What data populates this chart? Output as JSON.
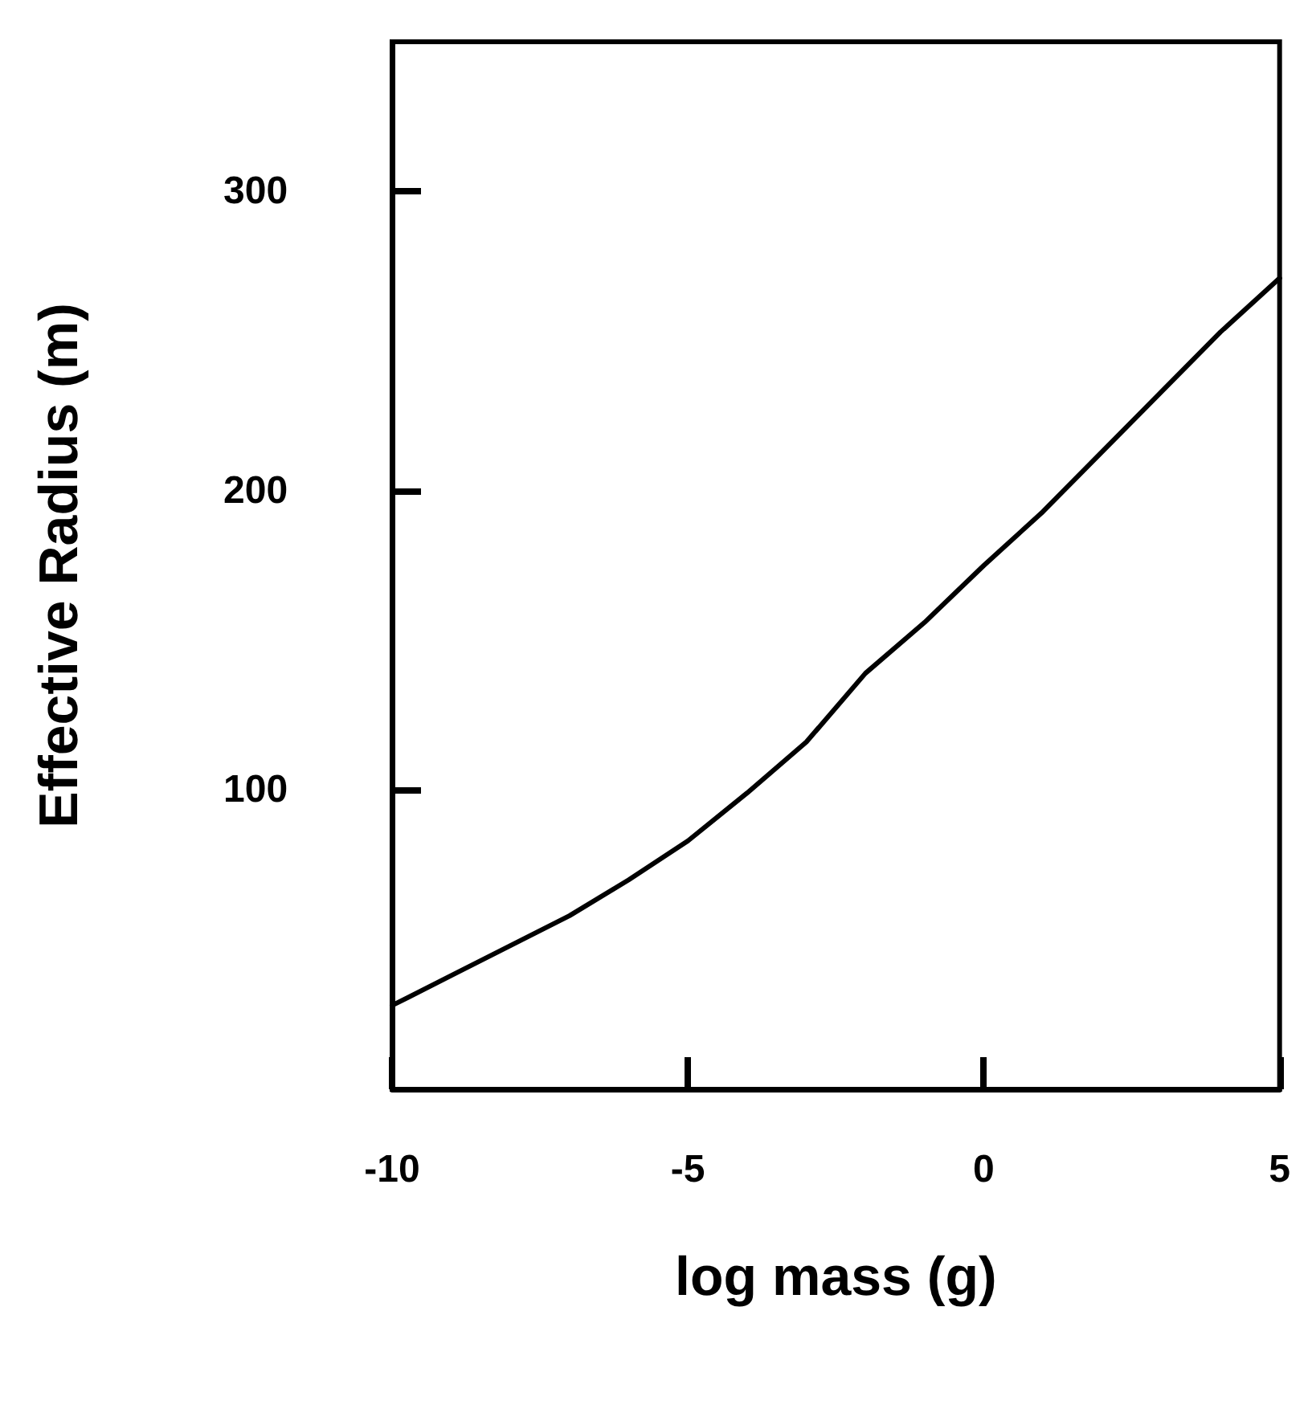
{
  "chart_data": {
    "type": "line",
    "xlabel": "log mass (g)",
    "ylabel": "Effective Radius (m)",
    "x": [
      -10,
      -9,
      -8,
      -7,
      -6,
      -5,
      -4,
      -3,
      -2,
      -1,
      0,
      1,
      2,
      3,
      4,
      5
    ],
    "series": [
      {
        "color": "#000000",
        "values": [
          28,
          38,
          48,
          58,
          70,
          83,
          99,
          116,
          139,
          156,
          175,
          193,
          213,
          233,
          253,
          271
        ]
      }
    ],
    "xlim": [
      -10,
      5
    ],
    "xticks": [
      -10,
      -5,
      0,
      5
    ],
    "ylim": [
      0,
      350
    ],
    "yticks": [
      100,
      200,
      300
    ],
    "grid": false,
    "marker": "none",
    "line_style": "solid"
  }
}
